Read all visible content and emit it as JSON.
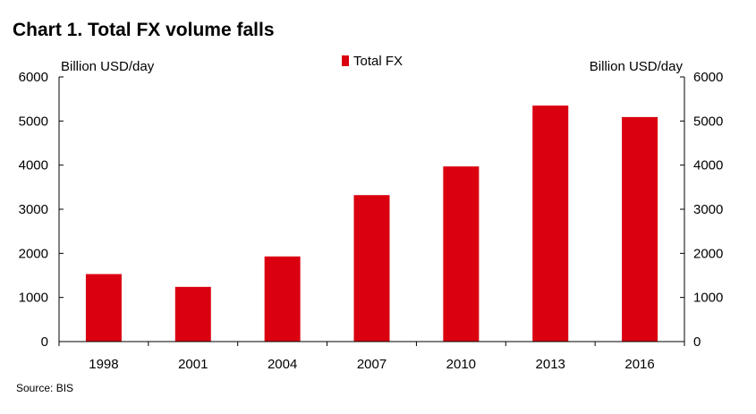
{
  "title": "Chart 1. Total FX volume falls",
  "source": "Source: BIS",
  "colors": {
    "bar": "#DA0010",
    "axis": "#000000",
    "text": "#000000"
  },
  "chart_data": {
    "type": "bar",
    "title": "Chart 1. Total FX volume falls",
    "categories": [
      "1998",
      "2001",
      "2004",
      "2007",
      "2010",
      "2013",
      "2016"
    ],
    "series": [
      {
        "name": "Total FX",
        "values": [
          1530,
          1240,
          1930,
          3320,
          3970,
          5350,
          5090
        ]
      }
    ],
    "ylabel_left": "Billion USD/day",
    "ylabel_right": "Billion USD/day",
    "ylim": [
      0,
      6000
    ],
    "yticks": [
      0,
      1000,
      2000,
      3000,
      4000,
      5000,
      6000
    ],
    "grid": false,
    "legend": "top-center"
  }
}
